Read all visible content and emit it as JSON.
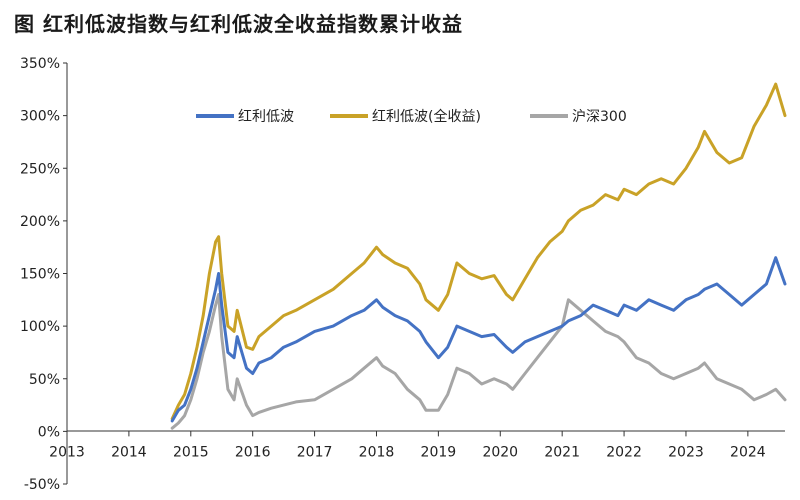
{
  "chart_data": {
    "type": "line",
    "title": "图  红利低波指数与红利低波全收益指数累计收益",
    "xlabel": "",
    "ylabel": "",
    "xlim": [
      2013,
      2024.6
    ],
    "ylim": [
      -50,
      350
    ],
    "x_ticks": [
      "2013",
      "2014",
      "2015",
      "2016",
      "2017",
      "2018",
      "2019",
      "2020",
      "2021",
      "2022",
      "2023",
      "2024"
    ],
    "y_ticks": [
      "-50%",
      "0%",
      "50%",
      "100%",
      "150%",
      "200%",
      "250%",
      "300%",
      "350%"
    ],
    "y_tick_values": [
      -50,
      0,
      50,
      100,
      150,
      200,
      250,
      300,
      350
    ],
    "grid": false,
    "legend_position": "top",
    "series": [
      {
        "name": "红利低波",
        "color": "#4472C4",
        "x": [
          2014.7,
          2014.8,
          2014.9,
          2015.0,
          2015.1,
          2015.2,
          2015.3,
          2015.4,
          2015.45,
          2015.5,
          2015.6,
          2015.7,
          2015.75,
          2015.9,
          2016.0,
          2016.1,
          2016.3,
          2016.5,
          2016.7,
          2017.0,
          2017.3,
          2017.6,
          2017.8,
          2018.0,
          2018.1,
          2018.3,
          2018.5,
          2018.7,
          2018.8,
          2019.0,
          2019.15,
          2019.3,
          2019.5,
          2019.7,
          2019.9,
          2020.1,
          2020.2,
          2020.4,
          2020.6,
          2020.8,
          2021.0,
          2021.1,
          2021.3,
          2021.5,
          2021.7,
          2021.9,
          2022.0,
          2022.2,
          2022.4,
          2022.6,
          2022.8,
          2023.0,
          2023.2,
          2023.3,
          2023.5,
          2023.7,
          2023.9,
          2024.0,
          2024.1,
          2024.3,
          2024.45,
          2024.6
        ],
        "values": [
          10,
          20,
          25,
          40,
          60,
          85,
          110,
          135,
          150,
          120,
          75,
          70,
          90,
          60,
          55,
          65,
          70,
          80,
          85,
          95,
          100,
          110,
          115,
          125,
          118,
          110,
          105,
          95,
          85,
          70,
          80,
          100,
          95,
          90,
          92,
          80,
          75,
          85,
          90,
          95,
          100,
          105,
          110,
          120,
          115,
          110,
          120,
          115,
          125,
          120,
          115,
          125,
          130,
          135,
          140,
          130,
          120,
          125,
          130,
          140,
          165,
          140
        ]
      },
      {
        "name": "红利低波(全收益)",
        "color": "#C9A227",
        "x": [
          2014.7,
          2014.8,
          2014.9,
          2015.0,
          2015.1,
          2015.2,
          2015.3,
          2015.4,
          2015.45,
          2015.5,
          2015.6,
          2015.7,
          2015.75,
          2015.9,
          2016.0,
          2016.1,
          2016.3,
          2016.5,
          2016.7,
          2017.0,
          2017.3,
          2017.6,
          2017.8,
          2018.0,
          2018.1,
          2018.3,
          2018.5,
          2018.7,
          2018.8,
          2019.0,
          2019.15,
          2019.3,
          2019.5,
          2019.7,
          2019.9,
          2020.1,
          2020.2,
          2020.4,
          2020.6,
          2020.8,
          2021.0,
          2021.1,
          2021.3,
          2021.5,
          2021.7,
          2021.9,
          2022.0,
          2022.2,
          2022.4,
          2022.6,
          2022.8,
          2023.0,
          2023.2,
          2023.3,
          2023.5,
          2023.7,
          2023.9,
          2024.0,
          2024.1,
          2024.3,
          2024.45,
          2024.6
        ],
        "values": [
          12,
          25,
          35,
          55,
          80,
          110,
          150,
          180,
          185,
          150,
          100,
          95,
          115,
          80,
          78,
          90,
          100,
          110,
          115,
          125,
          135,
          150,
          160,
          175,
          168,
          160,
          155,
          140,
          125,
          115,
          130,
          160,
          150,
          145,
          148,
          130,
          125,
          145,
          165,
          180,
          190,
          200,
          210,
          215,
          225,
          220,
          230,
          225,
          235,
          240,
          235,
          250,
          270,
          285,
          265,
          255,
          260,
          275,
          290,
          310,
          330,
          300
        ]
      },
      {
        "name": "沪深300",
        "color": "#A6A6A6",
        "x": [
          2014.7,
          2014.8,
          2014.9,
          2015.0,
          2015.1,
          2015.2,
          2015.3,
          2015.4,
          2015.45,
          2015.5,
          2015.6,
          2015.7,
          2015.75,
          2015.9,
          2016.0,
          2016.1,
          2016.3,
          2016.5,
          2016.7,
          2017.0,
          2017.3,
          2017.6,
          2017.8,
          2018.0,
          2018.1,
          2018.3,
          2018.5,
          2018.7,
          2018.8,
          2019.0,
          2019.15,
          2019.3,
          2019.5,
          2019.7,
          2019.9,
          2020.1,
          2020.2,
          2020.4,
          2020.6,
          2020.8,
          2021.0,
          2021.1,
          2021.3,
          2021.5,
          2021.7,
          2021.9,
          2022.0,
          2022.2,
          2022.4,
          2022.6,
          2022.8,
          2023.0,
          2023.2,
          2023.3,
          2023.5,
          2023.7,
          2023.9,
          2024.0,
          2024.1,
          2024.3,
          2024.45,
          2024.6
        ],
        "values": [
          3,
          8,
          15,
          30,
          50,
          75,
          95,
          120,
          130,
          90,
          40,
          30,
          50,
          25,
          15,
          18,
          22,
          25,
          28,
          30,
          40,
          50,
          60,
          70,
          62,
          55,
          40,
          30,
          20,
          20,
          35,
          60,
          55,
          45,
          50,
          45,
          40,
          55,
          70,
          85,
          100,
          125,
          115,
          105,
          95,
          90,
          85,
          70,
          65,
          55,
          50,
          55,
          60,
          65,
          50,
          45,
          40,
          35,
          30,
          35,
          40,
          30
        ]
      }
    ]
  }
}
